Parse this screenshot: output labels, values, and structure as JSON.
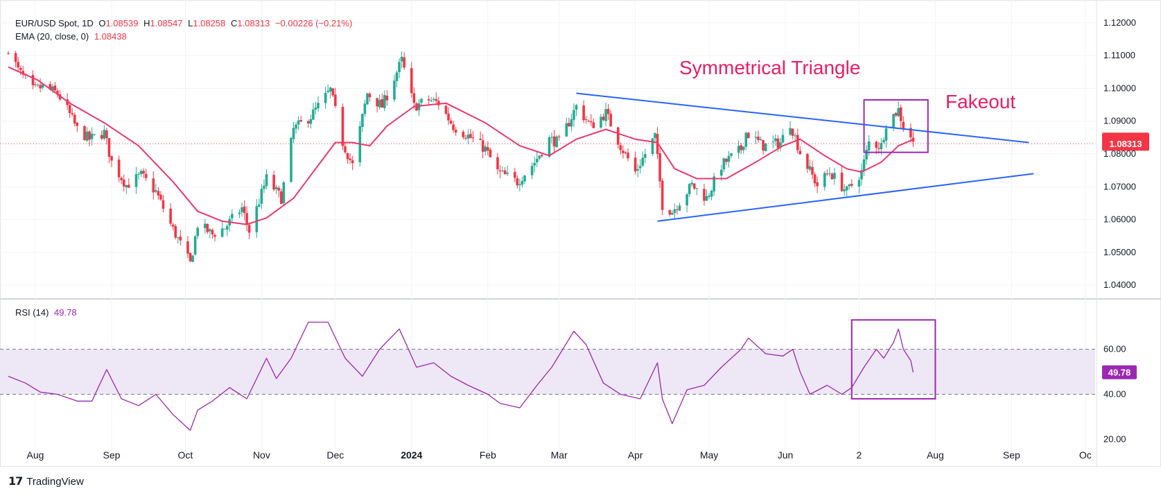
{
  "legend": {
    "symbol": "EUR/USD Spot, 1D",
    "o_label": "O",
    "o_value": "1.08539",
    "h_label": "H",
    "h_value": "1.08547",
    "l_label": "L",
    "l_value": "1.08258",
    "c_label": "C",
    "c_value": "1.08313",
    "change": "−0.00226 (−0.21%)",
    "ema_label": "EMA (20, close, 0)",
    "ema_value": "1.08438"
  },
  "rsi_legend": {
    "label": "RSI (14)",
    "value": "49.78"
  },
  "annotations": {
    "pattern": "Symmetrical Triangle",
    "fakeout": "Fakeout"
  },
  "footer": {
    "brand": "TradingView"
  },
  "colors": {
    "up": "#22ab94",
    "down": "#f23645",
    "ema": "#e8386c",
    "trendline": "#2962ff",
    "rsi": "#9c27b0",
    "box": "#9c27b0",
    "annotation": "#e91e63",
    "rsi_band": "#ede7f6"
  },
  "chart_data": [
    {
      "type": "candlestick",
      "title": "EUR/USD Spot, 1D",
      "ylim": [
        1.036,
        1.124
      ],
      "y_ticks": [
        "1.12000",
        "1.11000",
        "1.10000",
        "1.09000",
        "1.08000",
        "1.07000",
        "1.06000",
        "1.05000",
        "1.04000"
      ],
      "y_tick_values": [
        1.12,
        1.11,
        1.1,
        1.09,
        1.08,
        1.07,
        1.06,
        1.05,
        1.04
      ],
      "x_labels": [
        "Aug",
        "Sep",
        "Oct",
        "Nov",
        "Dec",
        "2024",
        "Feb",
        "Mar",
        "Apr",
        "May",
        "Jun",
        "2",
        "Aug",
        "Sep",
        "Oc"
      ],
      "x_label_dates": [
        "2023-08-01",
        "2023-09-01",
        "2023-10-01",
        "2023-11-01",
        "2023-12-01",
        "2024-01-01",
        "2024-02-01",
        "2024-03-01",
        "2024-04-01",
        "2024-05-01",
        "2024-06-01",
        "2024-07-01",
        "2024-08-01",
        "2024-09-01",
        "2024-10-01"
      ],
      "x_range": [
        "2023-07-21",
        "2024-10-05"
      ],
      "price_labels": [
        {
          "text": "1.08438",
          "value": 1.08438,
          "color": "#f23645"
        },
        {
          "text": "1.08313",
          "value": 1.08313,
          "color": "#f23645"
        }
      ],
      "current_price": 1.08313,
      "close_path": [
        [
          "2023-07-21",
          1.1125
        ],
        [
          "2023-07-25",
          1.1055
        ],
        [
          "2023-07-31",
          1.0995
        ],
        [
          "2023-08-04",
          1.1005
        ],
        [
          "2023-08-10",
          1.0985
        ],
        [
          "2023-08-14",
          1.0935
        ],
        [
          "2023-08-18",
          1.0875
        ],
        [
          "2023-08-23",
          1.0845
        ],
        [
          "2023-08-29",
          1.0865
        ],
        [
          "2023-09-01",
          1.0775
        ],
        [
          "2023-09-07",
          1.0705
        ],
        [
          "2023-09-13",
          1.0735
        ],
        [
          "2023-09-19",
          1.0685
        ],
        [
          "2023-09-25",
          1.0585
        ],
        [
          "2023-10-03",
          1.0465
        ],
        [
          "2023-10-06",
          1.0585
        ],
        [
          "2023-10-12",
          1.0555
        ],
        [
          "2023-10-17",
          1.0575
        ],
        [
          "2023-10-24",
          1.0635
        ],
        [
          "2023-10-27",
          1.0565
        ],
        [
          "2023-11-03",
          1.0725
        ],
        [
          "2023-11-09",
          1.0665
        ],
        [
          "2023-11-14",
          1.0875
        ],
        [
          "2023-11-21",
          1.0915
        ],
        [
          "2023-11-29",
          1.0995
        ],
        [
          "2023-12-04",
          1.0835
        ],
        [
          "2023-12-08",
          1.0765
        ],
        [
          "2023-12-14",
          1.0985
        ],
        [
          "2023-12-20",
          1.0945
        ],
        [
          "2023-12-28",
          1.1085
        ],
        [
          "2024-01-02",
          1.0945
        ],
        [
          "2024-01-08",
          1.0965
        ],
        [
          "2024-01-12",
          1.0955
        ],
        [
          "2024-01-18",
          1.0885
        ],
        [
          "2024-01-24",
          1.0855
        ],
        [
          "2024-01-31",
          1.0815
        ],
        [
          "2024-02-05",
          1.0745
        ],
        [
          "2024-02-13",
          1.0715
        ],
        [
          "2024-02-20",
          1.0775
        ],
        [
          "2024-02-26",
          1.0845
        ],
        [
          "2024-03-01",
          1.0835
        ],
        [
          "2024-03-08",
          1.0945
        ],
        [
          "2024-03-14",
          1.0885
        ],
        [
          "2024-03-20",
          1.0925
        ],
        [
          "2024-03-26",
          1.0825
        ],
        [
          "2024-04-01",
          1.0745
        ],
        [
          "2024-04-09",
          1.0855
        ],
        [
          "2024-04-12",
          1.0645
        ],
        [
          "2024-04-16",
          1.0625
        ],
        [
          "2024-04-24",
          1.0705
        ],
        [
          "2024-04-30",
          1.0665
        ],
        [
          "2024-05-06",
          1.0765
        ],
        [
          "2024-05-14",
          1.0815
        ],
        [
          "2024-05-16",
          1.0865
        ],
        [
          "2024-05-23",
          1.0825
        ],
        [
          "2024-05-30",
          1.0835
        ],
        [
          "2024-06-03",
          1.0895
        ],
        [
          "2024-06-07",
          1.0805
        ],
        [
          "2024-06-14",
          1.0705
        ],
        [
          "2024-06-19",
          1.0745
        ],
        [
          "2024-06-26",
          1.0685
        ],
        [
          "2024-07-02",
          1.0745
        ],
        [
          "2024-07-05",
          1.0835
        ],
        [
          "2024-07-10",
          1.0825
        ],
        [
          "2024-07-12",
          1.0895
        ],
        [
          "2024-07-17",
          1.0935
        ],
        [
          "2024-07-19",
          1.0885
        ],
        [
          "2024-07-22",
          1.0855
        ],
        [
          "2024-07-23",
          1.0831
        ]
      ],
      "ema_path": [
        [
          "2023-07-21",
          1.1065
        ],
        [
          "2023-08-02",
          1.1025
        ],
        [
          "2023-08-15",
          1.0955
        ],
        [
          "2023-08-29",
          1.0895
        ],
        [
          "2023-09-12",
          1.0825
        ],
        [
          "2023-09-26",
          1.0715
        ],
        [
          "2023-10-06",
          1.0625
        ],
        [
          "2023-10-16",
          1.0595
        ],
        [
          "2023-10-26",
          1.0585
        ],
        [
          "2023-11-03",
          1.0605
        ],
        [
          "2023-11-14",
          1.0665
        ],
        [
          "2023-11-24",
          1.0765
        ],
        [
          "2023-12-01",
          1.0835
        ],
        [
          "2023-12-08",
          1.0835
        ],
        [
          "2023-12-15",
          1.0825
        ],
        [
          "2023-12-22",
          1.0885
        ],
        [
          "2024-01-02",
          1.0945
        ],
        [
          "2024-01-15",
          1.0955
        ],
        [
          "2024-01-31",
          1.0895
        ],
        [
          "2024-02-14",
          1.0825
        ],
        [
          "2024-02-26",
          1.0795
        ],
        [
          "2024-03-08",
          1.0845
        ],
        [
          "2024-03-20",
          1.0875
        ],
        [
          "2024-04-01",
          1.0845
        ],
        [
          "2024-04-10",
          1.0835
        ],
        [
          "2024-04-17",
          1.0755
        ],
        [
          "2024-04-26",
          1.0725
        ],
        [
          "2024-05-08",
          1.0725
        ],
        [
          "2024-05-20",
          1.0775
        ],
        [
          "2024-05-31",
          1.0825
        ],
        [
          "2024-06-07",
          1.0845
        ],
        [
          "2024-06-17",
          1.0795
        ],
        [
          "2024-06-26",
          1.0755
        ],
        [
          "2024-07-02",
          1.0745
        ],
        [
          "2024-07-10",
          1.0775
        ],
        [
          "2024-07-17",
          1.0825
        ],
        [
          "2024-07-23",
          1.0844
        ]
      ],
      "trendlines": [
        {
          "name": "upper",
          "from": [
            "2024-03-08",
            1.0985
          ],
          "to": [
            "2024-09-08",
            1.0835
          ]
        },
        {
          "name": "lower",
          "from": [
            "2024-04-10",
            1.0595
          ],
          "to": [
            "2024-09-10",
            1.074
          ]
        }
      ],
      "box": {
        "from": [
          "2024-07-03",
          1.0965
        ],
        "to": [
          "2024-07-29",
          1.0805
        ]
      }
    },
    {
      "type": "line",
      "title": "RSI (14)",
      "ylim": [
        18,
        82
      ],
      "y_ticks": [
        "60.00",
        "40.00",
        "20.00"
      ],
      "y_tick_values": [
        60,
        40,
        20
      ],
      "band": [
        40,
        60
      ],
      "current": 49.78,
      "rsi_path": [
        [
          "2023-07-21",
          48
        ],
        [
          "2023-07-28",
          45
        ],
        [
          "2023-08-03",
          41
        ],
        [
          "2023-08-10",
          40
        ],
        [
          "2023-08-18",
          37
        ],
        [
          "2023-08-24",
          37
        ],
        [
          "2023-08-30",
          51
        ],
        [
          "2023-09-05",
          38
        ],
        [
          "2023-09-12",
          35
        ],
        [
          "2023-09-19",
          40
        ],
        [
          "2023-09-26",
          31
        ],
        [
          "2023-10-03",
          24
        ],
        [
          "2023-10-06",
          33
        ],
        [
          "2023-10-12",
          37
        ],
        [
          "2023-10-19",
          43
        ],
        [
          "2023-10-26",
          38
        ],
        [
          "2023-11-03",
          56
        ],
        [
          "2023-11-07",
          47
        ],
        [
          "2023-11-13",
          56
        ],
        [
          "2023-11-20",
          72
        ],
        [
          "2023-11-28",
          72
        ],
        [
          "2023-12-05",
          56
        ],
        [
          "2023-12-12",
          48
        ],
        [
          "2023-12-19",
          60
        ],
        [
          "2023-12-27",
          69
        ],
        [
          "2024-01-03",
          52
        ],
        [
          "2024-01-10",
          54
        ],
        [
          "2024-01-17",
          48
        ],
        [
          "2024-01-24",
          44
        ],
        [
          "2024-02-01",
          40
        ],
        [
          "2024-02-06",
          36
        ],
        [
          "2024-02-14",
          34
        ],
        [
          "2024-02-21",
          44
        ],
        [
          "2024-02-27",
          52
        ],
        [
          "2024-03-07",
          68
        ],
        [
          "2024-03-12",
          62
        ],
        [
          "2024-03-19",
          45
        ],
        [
          "2024-03-26",
          40
        ],
        [
          "2024-04-03",
          38
        ],
        [
          "2024-04-10",
          54
        ],
        [
          "2024-04-12",
          38
        ],
        [
          "2024-04-16",
          27
        ],
        [
          "2024-04-22",
          42
        ],
        [
          "2024-04-29",
          44
        ],
        [
          "2024-05-06",
          52
        ],
        [
          "2024-05-14",
          60
        ],
        [
          "2024-05-17",
          65
        ],
        [
          "2024-05-24",
          58
        ],
        [
          "2024-05-31",
          57
        ],
        [
          "2024-06-04",
          60
        ],
        [
          "2024-06-07",
          50
        ],
        [
          "2024-06-11",
          40
        ],
        [
          "2024-06-18",
          44
        ],
        [
          "2024-06-24",
          40
        ],
        [
          "2024-06-28",
          43
        ],
        [
          "2024-07-03",
          52
        ],
        [
          "2024-07-08",
          60
        ],
        [
          "2024-07-11",
          56
        ],
        [
          "2024-07-15",
          63
        ],
        [
          "2024-07-17",
          69
        ],
        [
          "2024-07-19",
          60
        ],
        [
          "2024-07-22",
          55
        ],
        [
          "2024-07-23",
          49.78
        ]
      ],
      "box": {
        "from": [
          "2024-06-28",
          73
        ],
        "to": [
          "2024-08-01",
          38
        ]
      }
    }
  ]
}
